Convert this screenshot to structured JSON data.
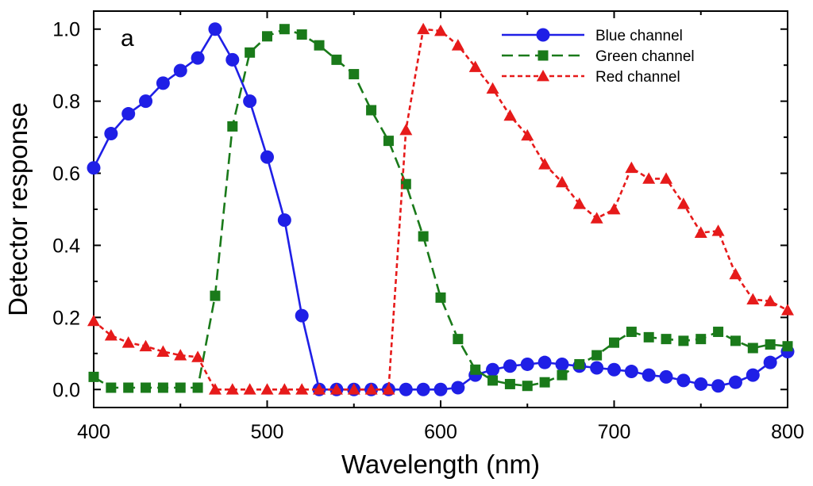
{
  "chart_data": {
    "type": "line",
    "panel_label": "a",
    "xlabel": "Wavelength (nm)",
    "ylabel": "Detector response",
    "xlim": [
      400,
      800
    ],
    "ylim": [
      -0.05,
      1.05
    ],
    "x_ticks": [
      400,
      500,
      600,
      700,
      800
    ],
    "x_tick_labels": [
      "400",
      "500",
      "600",
      "700",
      "800"
    ],
    "y_ticks": [
      0.0,
      0.2,
      0.4,
      0.6,
      0.8,
      1.0
    ],
    "y_tick_labels": [
      "0.0",
      "0.2",
      "0.4",
      "0.6",
      "0.8",
      "1.0"
    ],
    "grid": false,
    "legend_position": "top-right",
    "x": [
      400,
      410,
      420,
      430,
      440,
      450,
      460,
      470,
      480,
      490,
      500,
      510,
      520,
      530,
      540,
      550,
      560,
      570,
      580,
      590,
      600,
      610,
      620,
      630,
      640,
      650,
      660,
      670,
      680,
      690,
      700,
      710,
      720,
      730,
      740,
      750,
      760,
      770,
      780,
      790,
      800
    ],
    "series": [
      {
        "name": "Blue channel",
        "color": "#1f1fe6",
        "marker": "circle",
        "line_style": "solid",
        "values": [
          0.615,
          0.71,
          0.765,
          0.8,
          0.85,
          0.885,
          0.92,
          1.0,
          0.915,
          0.8,
          0.645,
          0.47,
          0.205,
          0.0,
          0.0,
          0.0,
          0.0,
          0.0,
          0.0,
          0.0,
          0.0,
          0.005,
          0.04,
          0.055,
          0.065,
          0.07,
          0.075,
          0.07,
          0.065,
          0.06,
          0.055,
          0.05,
          0.04,
          0.035,
          0.025,
          0.015,
          0.01,
          0.02,
          0.04,
          0.075,
          0.105
        ]
      },
      {
        "name": "Green channel",
        "color": "#1a7a1a",
        "marker": "square",
        "line_style": "dashed",
        "values": [
          0.035,
          0.005,
          0.005,
          0.005,
          0.005,
          0.005,
          0.005,
          0.26,
          0.73,
          0.935,
          0.98,
          1.0,
          0.985,
          0.955,
          0.915,
          0.875,
          0.775,
          0.69,
          0.57,
          0.425,
          0.255,
          0.14,
          0.055,
          0.025,
          0.015,
          0.01,
          0.02,
          0.04,
          0.07,
          0.095,
          0.13,
          0.16,
          0.145,
          0.14,
          0.135,
          0.14,
          0.16,
          0.135,
          0.115,
          0.125,
          0.12
        ]
      },
      {
        "name": "Red channel",
        "color": "#e61a1a",
        "marker": "triangle",
        "line_style": "dotted-dashed",
        "values": [
          0.19,
          0.15,
          0.13,
          0.12,
          0.105,
          0.095,
          0.09,
          0.0,
          0.0,
          0.0,
          0.0,
          0.0,
          0.0,
          0.0,
          0.0,
          0.0,
          0.0,
          0.0,
          0.72,
          1.0,
          0.995,
          0.955,
          0.895,
          0.835,
          0.76,
          0.705,
          0.625,
          0.575,
          0.515,
          0.475,
          0.5,
          0.615,
          0.585,
          0.585,
          0.515,
          0.435,
          0.44,
          0.32,
          0.25,
          0.245,
          0.22
        ]
      }
    ]
  }
}
